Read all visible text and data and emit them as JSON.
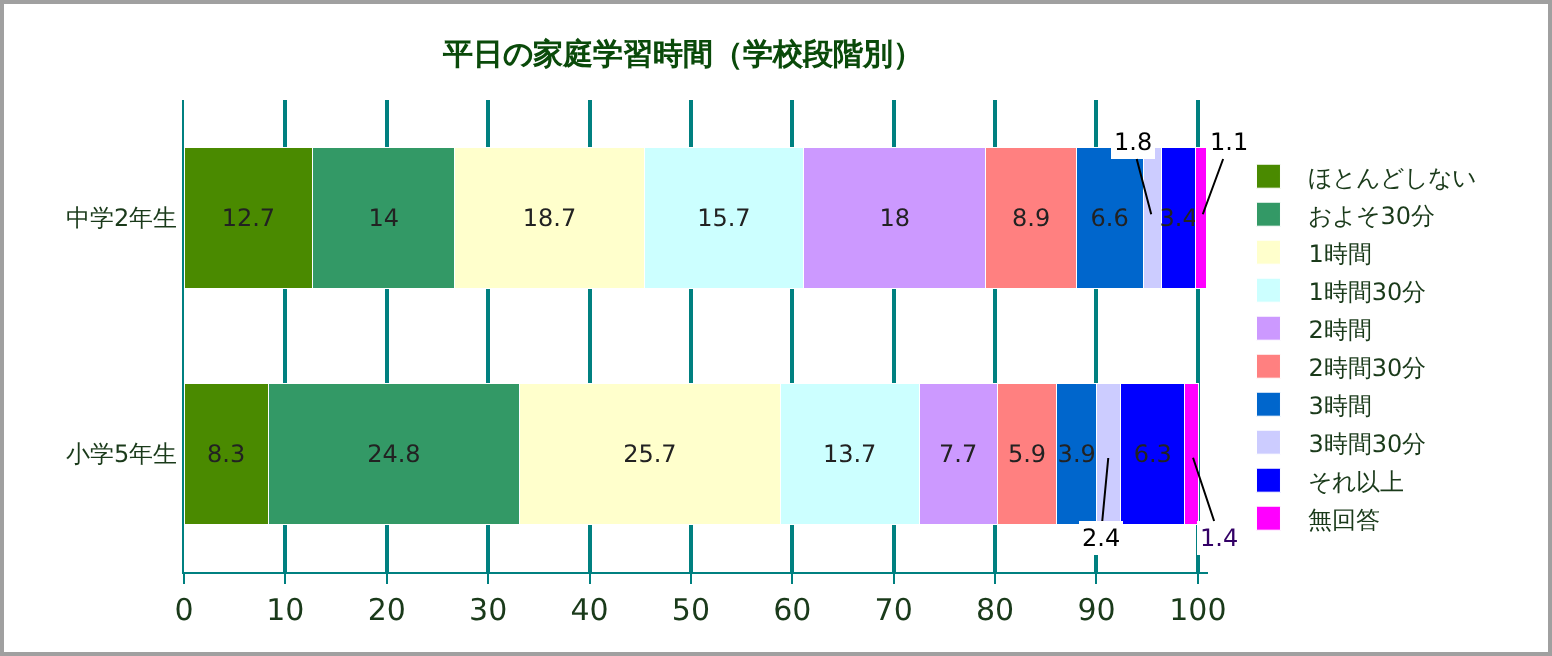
{
  "chart_data": {
    "type": "bar",
    "orientation": "horizontal",
    "stacked": true,
    "title": "平日の家庭学習時間（学校段階別）",
    "categories": [
      "中学2年生",
      "小学5年生"
    ],
    "series": [
      {
        "name": "ほとんどしない",
        "color": "#4a8a00",
        "values": [
          12.7,
          8.3
        ]
      },
      {
        "name": "およそ30分",
        "color": "#339966",
        "values": [
          14,
          24.8
        ]
      },
      {
        "name": "1時間",
        "color": "#ffffcc",
        "values": [
          18.7,
          25.7
        ]
      },
      {
        "name": "1時間30分",
        "color": "#ccffff",
        "values": [
          15.7,
          13.7
        ]
      },
      {
        "name": "2時間",
        "color": "#cc99ff",
        "values": [
          18,
          7.7
        ]
      },
      {
        "name": "2時間30分",
        "color": "#ff8080",
        "values": [
          8.9,
          5.9
        ]
      },
      {
        "name": "3時間",
        "color": "#0066cc",
        "values": [
          6.6,
          3.9
        ]
      },
      {
        "name": "3時間30分",
        "color": "#ccccff",
        "values": [
          1.8,
          2.4
        ]
      },
      {
        "name": "それ以上",
        "color": "#0000ff",
        "values": [
          3.4,
          6.3
        ]
      },
      {
        "name": "無回答",
        "color": "#ff00ff",
        "values": [
          1.1,
          1.4
        ]
      }
    ],
    "xlim": [
      0,
      101
    ],
    "xticks": [
      0,
      10,
      20,
      30,
      40,
      50,
      60,
      70,
      80,
      90,
      100
    ],
    "grid": "x",
    "legend": "right",
    "data_labels": true
  }
}
